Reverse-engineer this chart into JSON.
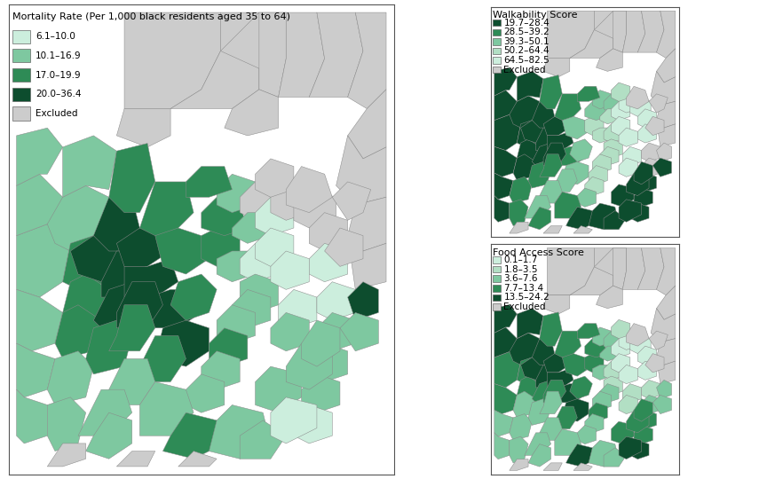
{
  "mortality_title": "Mortality Rate (Per 1,000 black residents aged 35 to 64)",
  "walkability_title": "Walkability Score",
  "food_title": "Food Access Score",
  "mortality_legend": [
    {
      "label": "6.1–10.0",
      "color": "#cceedd"
    },
    {
      "label": "10.1–16.9",
      "color": "#7ec8a0"
    },
    {
      "label": "17.0–19.9",
      "color": "#2e8b56"
    },
    {
      "label": "20.0–36.4",
      "color": "#0d4d2e"
    },
    {
      "label": "Excluded",
      "color": "#cccccc"
    }
  ],
  "walkability_legend": [
    {
      "label": "19.7–28.4",
      "color": "#0d4d2e"
    },
    {
      "label": "28.5–39.2",
      "color": "#2e8b56"
    },
    {
      "label": "39.3–50.1",
      "color": "#7ec8a0"
    },
    {
      "label": "50.2–64.4",
      "color": "#b2dfc4"
    },
    {
      "label": "64.5–82.5",
      "color": "#cceedd"
    },
    {
      "label": "Excluded",
      "color": "#cccccc"
    }
  ],
  "food_legend": [
    {
      "label": "0.1–1.7",
      "color": "#cceedd"
    },
    {
      "label": "1.8–3.5",
      "color": "#b2dfc4"
    },
    {
      "label": "3.6–7.6",
      "color": "#7ec8a0"
    },
    {
      "label": "7.7–13.4",
      "color": "#2e8b56"
    },
    {
      "label": "13.5–24.2",
      "color": "#0d4d2e"
    },
    {
      "label": "Excluded",
      "color": "#cccccc"
    }
  ],
  "bg_color": "#ffffff",
  "legend_fontsize": 7.5,
  "title_fontsize": 8.0
}
